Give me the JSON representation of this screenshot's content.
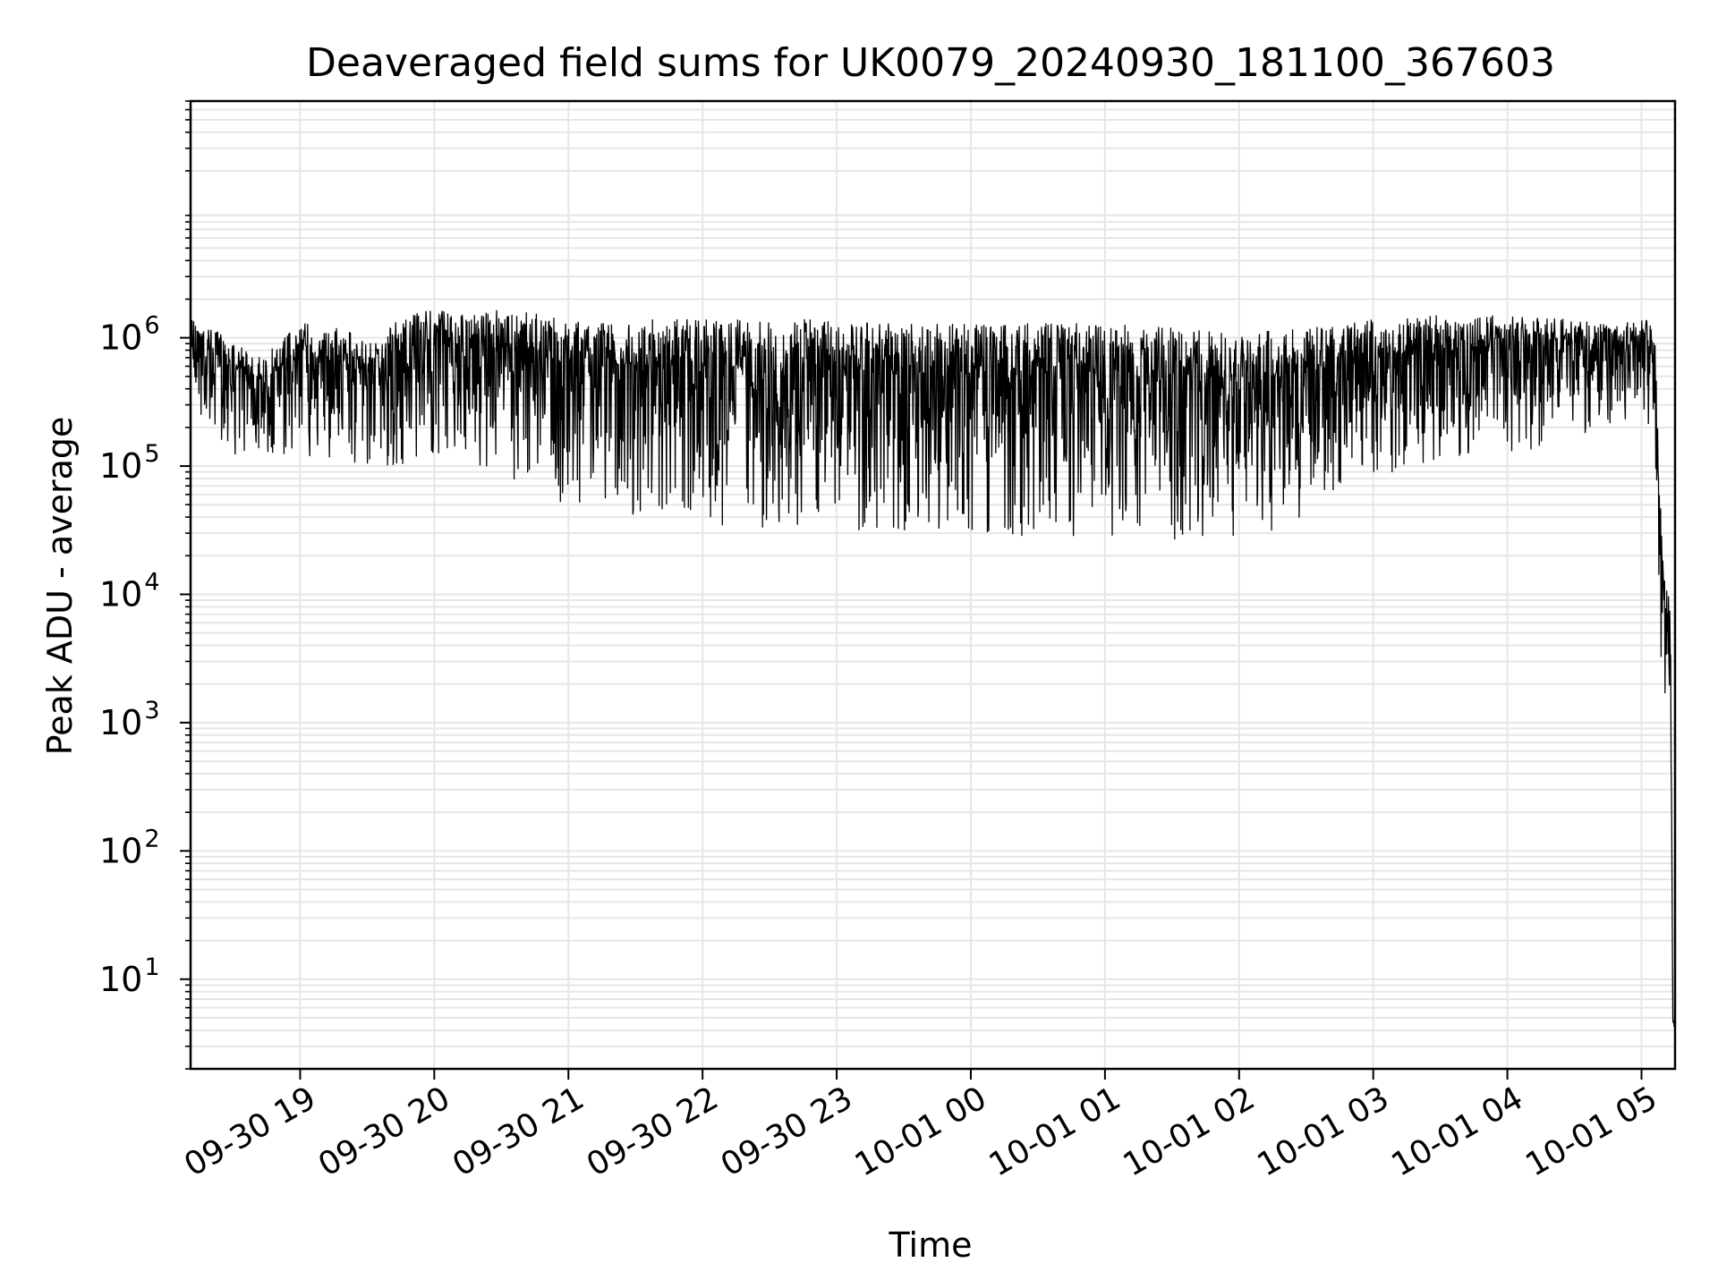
{
  "chart_data": {
    "type": "line",
    "title": "Deaveraged field sums for UK0079_20240930_181100_367603",
    "xlabel": "Time",
    "ylabel": "Peak ADU - average",
    "yscale": "log",
    "grid": true,
    "legend": "none",
    "line_color": "#000000",
    "grid_color": "#e6e6e6",
    "xlim": [
      "2024-09-30 18:11",
      "2024-10-01 05:15"
    ],
    "ylim": [
      2,
      70000000
    ],
    "x_ticks": [
      {
        "t": "2024-09-30 19:00",
        "label": "09-30 19"
      },
      {
        "t": "2024-09-30 20:00",
        "label": "09-30 20"
      },
      {
        "t": "2024-09-30 21:00",
        "label": "09-30 21"
      },
      {
        "t": "2024-09-30 22:00",
        "label": "09-30 22"
      },
      {
        "t": "2024-09-30 23:00",
        "label": "09-30 23"
      },
      {
        "t": "2024-10-01 00:00",
        "label": "10-01 00"
      },
      {
        "t": "2024-10-01 01:00",
        "label": "10-01 01"
      },
      {
        "t": "2024-10-01 02:00",
        "label": "10-01 02"
      },
      {
        "t": "2024-10-01 03:00",
        "label": "10-01 03"
      },
      {
        "t": "2024-10-01 04:00",
        "label": "10-01 04"
      },
      {
        "t": "2024-10-01 05:00",
        "label": "10-01 05"
      }
    ],
    "y_ticks": [
      {
        "value": 10,
        "exp": "1"
      },
      {
        "value": 100,
        "exp": "2"
      },
      {
        "value": 1000,
        "exp": "3"
      },
      {
        "value": 10000,
        "exp": "4"
      },
      {
        "value": 100000,
        "exp": "5"
      },
      {
        "value": 1000000,
        "exp": "6"
      }
    ],
    "y_tick_base": "10",
    "series": [
      {
        "x_times": [
          "2024-09-30 18:11",
          "2024-09-30 18:15",
          "2024-09-30 18:20",
          "2024-09-30 18:30",
          "2024-09-30 18:40",
          "2024-09-30 18:50",
          "2024-09-30 19:00",
          "2024-09-30 19:10",
          "2024-09-30 19:20",
          "2024-09-30 19:30",
          "2024-09-30 19:40",
          "2024-09-30 19:50",
          "2024-09-30 20:00",
          "2024-09-30 20:15",
          "2024-09-30 20:30",
          "2024-09-30 20:45",
          "2024-09-30 21:00",
          "2024-09-30 21:15",
          "2024-09-30 21:30",
          "2024-09-30 21:45",
          "2024-09-30 22:00",
          "2024-09-30 22:30",
          "2024-09-30 23:00",
          "2024-09-30 23:30",
          "2024-10-01 00:00",
          "2024-10-01 00:30",
          "2024-10-01 01:00",
          "2024-10-01 01:30",
          "2024-10-01 02:00",
          "2024-10-01 02:30",
          "2024-10-01 03:00",
          "2024-10-01 03:30",
          "2024-10-01 04:00",
          "2024-10-01 04:30",
          "2024-10-01 04:50",
          "2024-10-01 05:00",
          "2024-10-01 05:03",
          "2024-10-01 05:06",
          "2024-10-01 05:08",
          "2024-10-01 05:10",
          "2024-10-01 05:12",
          "2024-10-01 05:13",
          "2024-10-01 05:14",
          "2024-10-01 05:15"
        ],
        "upper": [
          1500000,
          1500000,
          1200000,
          1000000,
          700000,
          900000,
          1500000,
          1200000,
          1200000,
          900000,
          1300000,
          1500000,
          1800000,
          1500000,
          1700000,
          1600000,
          1400000,
          1400000,
          1400000,
          1400000,
          1400000,
          1400000,
          1400000,
          1300000,
          1300000,
          1300000,
          1300000,
          1200000,
          1100000,
          1200000,
          1400000,
          1500000,
          1500000,
          1400000,
          1300000,
          1400000,
          1500000,
          900000,
          100000,
          13000,
          12000,
          7000,
          5,
          5
        ],
        "lower": [
          400000,
          250000,
          200000,
          120000,
          130000,
          120000,
          120000,
          110000,
          110000,
          100000,
          100000,
          100000,
          110000,
          120000,
          70000,
          60000,
          50000,
          45000,
          40000,
          38000,
          35000,
          33000,
          32000,
          31000,
          30000,
          28000,
          27000,
          26000,
          25000,
          40000,
          80000,
          100000,
          120000,
          150000,
          200000,
          300000,
          200000,
          50000,
          3000,
          1500,
          1400,
          1200,
          4,
          4
        ]
      }
    ]
  }
}
